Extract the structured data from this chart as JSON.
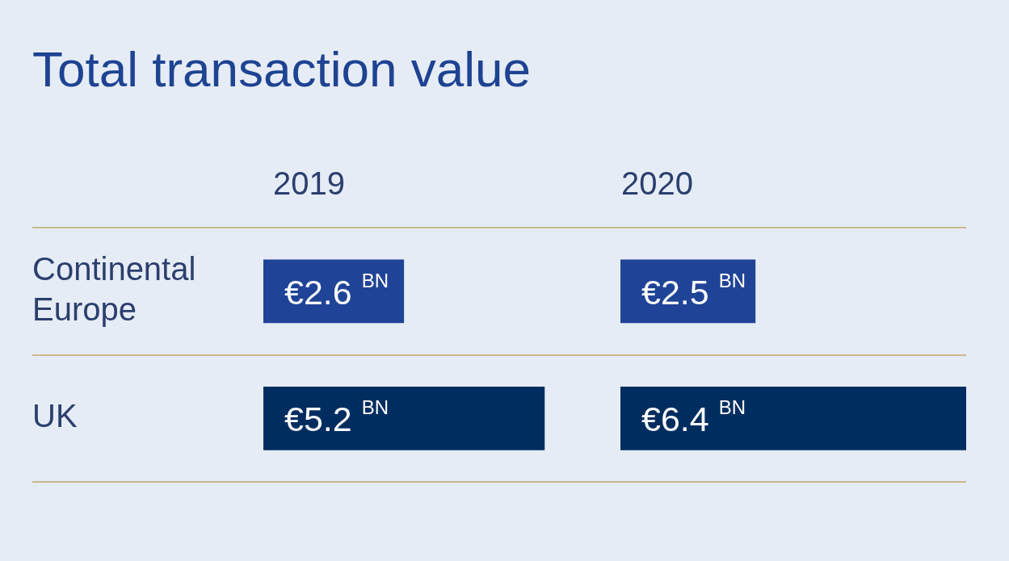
{
  "chart_data": [
    {
      "type": "other",
      "title": "Total transaction value"
    },
    {
      "type": "bar",
      "orientation": "horizontal",
      "title": "2019",
      "categories": [
        "Continental Europe",
        "UK"
      ],
      "values": [
        2.6,
        5.2
      ],
      "colors": [
        "#1f4397",
        "#002d5f"
      ],
      "value_labels": [
        "€2.6 $^{BN}$",
        "€5.2 $^{BN}$"
      ],
      "xlim": [
        0,
        6.6
      ],
      "grid": "y",
      "tick_labels": "y"
    },
    {
      "type": "bar",
      "orientation": "horizontal",
      "title": "2020",
      "categories": [
        null,
        null
      ],
      "values": [
        2.5,
        6.4
      ],
      "colors": [
        "#1f4397",
        "#002d5f"
      ],
      "value_labels": [
        "€2.5 $^{BN}$",
        "€6.4 $^{BN}$"
      ],
      "xlim": [
        0,
        6.4
      ],
      "grid": "y",
      "tick_labels": false
    }
  ]
}
